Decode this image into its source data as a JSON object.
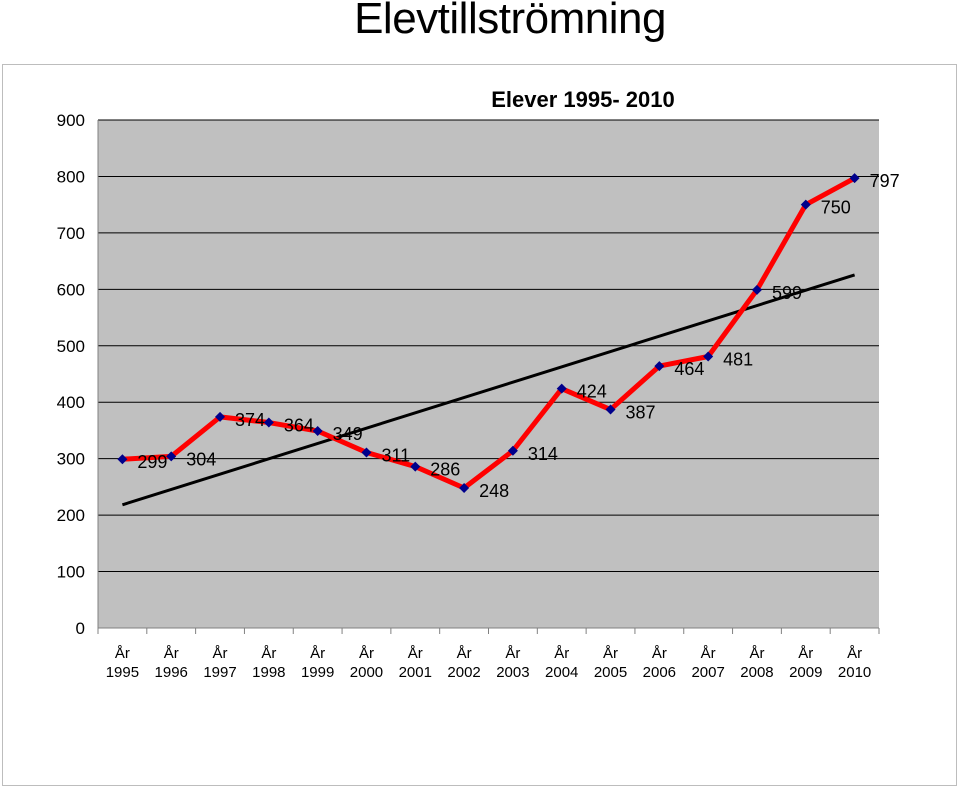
{
  "page": {
    "title": "Elevtillströmning"
  },
  "chart_data": {
    "type": "line",
    "title": "Elever 1995- 2010",
    "xlabel": "",
    "ylabel": "",
    "categories": [
      [
        "År",
        "1995"
      ],
      [
        "År",
        "1996"
      ],
      [
        "År",
        "1997"
      ],
      [
        "År",
        "1998"
      ],
      [
        "År",
        "1999"
      ],
      [
        "År",
        "2000"
      ],
      [
        "År",
        "2001"
      ],
      [
        "År",
        "2002"
      ],
      [
        "År",
        "2003"
      ],
      [
        "År",
        "2004"
      ],
      [
        "År",
        "2005"
      ],
      [
        "År",
        "2006"
      ],
      [
        "År",
        "2007"
      ],
      [
        "År",
        "2008"
      ],
      [
        "År",
        "2009"
      ],
      [
        "År",
        "2010"
      ]
    ],
    "series": [
      {
        "values": [
          299,
          304,
          374,
          364,
          349,
          311,
          286,
          248,
          314,
          424,
          387,
          464,
          481,
          599,
          750,
          797
        ],
        "line_color": "#ff0000",
        "marker_color": "#00008b",
        "marker": "diamond",
        "data_labels": [
          "299",
          "304",
          "374",
          "364",
          "349",
          "311",
          "286",
          "248",
          "314",
          "424",
          "387",
          "464",
          "481",
          "599",
          "750",
          "797"
        ]
      }
    ],
    "trendline": {
      "type": "linear",
      "color": "#000000"
    },
    "ylim": [
      0,
      900
    ],
    "yticks": [
      0,
      100,
      200,
      300,
      400,
      500,
      600,
      700,
      800,
      900
    ],
    "grid": true,
    "legend": "none",
    "plot_background": "#c0c0c0"
  }
}
